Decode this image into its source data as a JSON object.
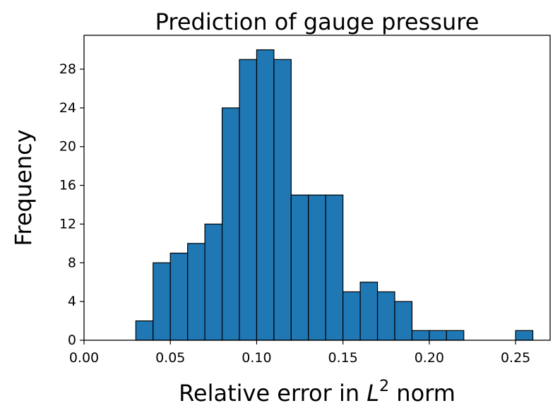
{
  "chart_data": {
    "type": "bar",
    "title": "Prediction of gauge pressure",
    "xlabel": {
      "prefix": "Relative error in ",
      "var": "L",
      "sup": "2",
      "suffix": " norm"
    },
    "ylabel": "Frequency",
    "xlim": [
      0.0,
      0.27
    ],
    "ylim": [
      0,
      31.5
    ],
    "xticks": [
      0.0,
      0.05,
      0.1,
      0.15,
      0.2,
      0.25
    ],
    "xtick_labels": [
      "0.00",
      "0.05",
      "0.10",
      "0.15",
      "0.20",
      "0.25"
    ],
    "yticks": [
      0,
      4,
      8,
      12,
      16,
      20,
      24,
      28
    ],
    "ytick_labels": [
      "0",
      "4",
      "8",
      "12",
      "16",
      "20",
      "24",
      "28"
    ],
    "bin_width": 0.01,
    "bins": [
      {
        "start": 0.03,
        "count": 2
      },
      {
        "start": 0.04,
        "count": 8
      },
      {
        "start": 0.05,
        "count": 9
      },
      {
        "start": 0.06,
        "count": 10
      },
      {
        "start": 0.07,
        "count": 12
      },
      {
        "start": 0.08,
        "count": 24
      },
      {
        "start": 0.09,
        "count": 29
      },
      {
        "start": 0.1,
        "count": 30
      },
      {
        "start": 0.11,
        "count": 29
      },
      {
        "start": 0.12,
        "count": 15
      },
      {
        "start": 0.13,
        "count": 15
      },
      {
        "start": 0.14,
        "count": 15
      },
      {
        "start": 0.15,
        "count": 5
      },
      {
        "start": 0.16,
        "count": 6
      },
      {
        "start": 0.17,
        "count": 5
      },
      {
        "start": 0.18,
        "count": 4
      },
      {
        "start": 0.19,
        "count": 1
      },
      {
        "start": 0.2,
        "count": 1
      },
      {
        "start": 0.21,
        "count": 1
      },
      {
        "start": 0.25,
        "count": 1
      }
    ],
    "bar_color": "#1f77b4",
    "edge_color": "#000000",
    "grid": false,
    "legend": "none"
  }
}
